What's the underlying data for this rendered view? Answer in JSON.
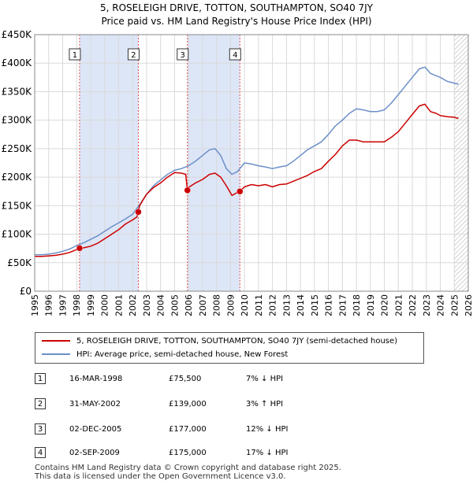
{
  "title": {
    "line1": "5, ROSELEIGH DRIVE, TOTTON, SOUTHAMPTON, SO40 7JY",
    "line2": "Price paid vs. HM Land Registry's House Price Index (HPI)"
  },
  "chart_data": {
    "type": "line",
    "title": "5, ROSELEIGH DRIVE, TOTTON, SOUTHAMPTON, SO40 7JY",
    "subtitle": "Price paid vs. HM Land Registry's House Price Index (HPI)",
    "xlabel": "",
    "ylabel": "",
    "xlim": [
      1995,
      2026
    ],
    "ylim": [
      0,
      450000
    ],
    "y_ticks": [
      0,
      50000,
      100000,
      150000,
      200000,
      250000,
      300000,
      350000,
      400000,
      450000
    ],
    "y_tick_labels": [
      "£0",
      "£50K",
      "£100K",
      "£150K",
      "£200K",
      "£250K",
      "£300K",
      "£350K",
      "£400K",
      "£450K"
    ],
    "x_ticks": [
      1995,
      1996,
      1997,
      1998,
      1999,
      2000,
      2001,
      2002,
      2003,
      2004,
      2005,
      2006,
      2007,
      2008,
      2009,
      2010,
      2011,
      2012,
      2013,
      2014,
      2015,
      2016,
      2017,
      2018,
      2019,
      2020,
      2021,
      2022,
      2023,
      2024,
      2025,
      2026
    ],
    "x_tick_labels": [
      "1995",
      "1996",
      "1997",
      "1998",
      "1999",
      "2000",
      "2001",
      "2002",
      "2003",
      "2004",
      "2005",
      "2006",
      "2007",
      "2008",
      "2009",
      "2010",
      "2011",
      "2012",
      "2013",
      "2014",
      "2015",
      "2016",
      "2017",
      "2018",
      "2019",
      "2020",
      "2021",
      "2022",
      "2023",
      "2024",
      "2025",
      "2026"
    ],
    "grid": true,
    "series": [
      {
        "name": "5, ROSELEIGH DRIVE, TOTTON, SOUTHAMPTON, SO40 7JY (semi-detached house)",
        "color": "#cc0000",
        "x": [
          1995.0,
          1995.5,
          1996.0,
          1996.5,
          1997.0,
          1997.5,
          1998.0,
          1998.21,
          1998.5,
          1999.0,
          1999.5,
          2000.0,
          2000.5,
          2001.0,
          2001.5,
          2002.0,
          2002.3,
          2002.41,
          2002.5,
          2003.0,
          2003.5,
          2004.0,
          2004.5,
          2005.0,
          2005.5,
          2005.8,
          2005.92,
          2006.0,
          2006.5,
          2007.0,
          2007.5,
          2007.9,
          2008.3,
          2008.7,
          2009.1,
          2009.4,
          2009.67,
          2010.0,
          2010.5,
          2011.0,
          2011.5,
          2012.0,
          2012.5,
          2013.0,
          2013.5,
          2014.0,
          2014.5,
          2015.0,
          2015.5,
          2016.0,
          2016.5,
          2017.0,
          2017.5,
          2018.0,
          2018.5,
          2019.0,
          2019.5,
          2020.0,
          2020.5,
          2021.0,
          2021.5,
          2022.0,
          2022.5,
          2022.9,
          2023.3,
          2023.7,
          2024.0,
          2024.5,
          2025.0,
          2025.3
        ],
        "values": [
          61000,
          61000,
          62000,
          63000,
          65000,
          68000,
          73000,
          75500,
          76000,
          79000,
          84000,
          92000,
          100000,
          108000,
          118000,
          125000,
          130000,
          139000,
          150000,
          170000,
          182000,
          190000,
          200000,
          208000,
          207000,
          205000,
          177000,
          182000,
          190000,
          196000,
          205000,
          207000,
          200000,
          185000,
          168000,
          172000,
          175000,
          183000,
          187000,
          185000,
          187000,
          183000,
          187000,
          188000,
          193000,
          198000,
          203000,
          210000,
          215000,
          228000,
          240000,
          255000,
          265000,
          265000,
          262000,
          262000,
          262000,
          262000,
          270000,
          280000,
          295000,
          310000,
          325000,
          328000,
          315000,
          312000,
          308000,
          306000,
          305000,
          303000
        ]
      },
      {
        "name": "HPI: Average price, semi-detached house, New Forest",
        "color": "#6b8fc8",
        "x": [
          1995.0,
          1995.5,
          1996.0,
          1996.5,
          1997.0,
          1997.5,
          1998.0,
          1998.5,
          1999.0,
          1999.5,
          2000.0,
          2000.5,
          2001.0,
          2001.5,
          2002.0,
          2002.5,
          2003.0,
          2003.5,
          2004.0,
          2004.5,
          2005.0,
          2005.5,
          2006.0,
          2006.5,
          2007.0,
          2007.5,
          2007.9,
          2008.3,
          2008.7,
          2009.1,
          2009.5,
          2010.0,
          2010.5,
          2011.0,
          2011.5,
          2012.0,
          2012.5,
          2013.0,
          2013.5,
          2014.0,
          2014.5,
          2015.0,
          2015.5,
          2016.0,
          2016.5,
          2017.0,
          2017.5,
          2018.0,
          2018.5,
          2019.0,
          2019.5,
          2020.0,
          2020.5,
          2021.0,
          2021.5,
          2022.0,
          2022.5,
          2022.9,
          2023.3,
          2023.7,
          2024.0,
          2024.5,
          2025.0,
          2025.3
        ],
        "values": [
          64000,
          64000,
          65000,
          67000,
          70000,
          74000,
          80000,
          85000,
          91000,
          97000,
          105000,
          113000,
          120000,
          127000,
          135000,
          152000,
          170000,
          185000,
          195000,
          205000,
          212000,
          215000,
          220000,
          228000,
          238000,
          248000,
          250000,
          238000,
          215000,
          205000,
          210000,
          225000,
          223000,
          220000,
          218000,
          215000,
          218000,
          220000,
          228000,
          238000,
          248000,
          255000,
          262000,
          275000,
          290000,
          300000,
          312000,
          320000,
          318000,
          315000,
          315000,
          318000,
          330000,
          345000,
          360000,
          375000,
          390000,
          393000,
          382000,
          378000,
          375000,
          368000,
          365000,
          363000
        ]
      }
    ],
    "markers": [
      {
        "id": "1",
        "x": 1998.21,
        "value": 75500
      },
      {
        "id": "2",
        "x": 2002.41,
        "value": 139000
      },
      {
        "id": "3",
        "x": 2005.92,
        "value": 177000
      },
      {
        "id": "4",
        "x": 2009.67,
        "value": 175000
      }
    ],
    "shaded_periods": [
      [
        1998.21,
        2002.41
      ],
      [
        2005.92,
        2009.67
      ]
    ],
    "hatched_from": 2025.0,
    "legend_position": "below"
  },
  "legend": {
    "price_paid": "5, ROSELEIGH DRIVE, TOTTON, SOUTHAMPTON, SO40 7JY (semi-detached house)",
    "hpi": "HPI: Average price, semi-detached house, New Forest"
  },
  "sales": [
    {
      "num": "1",
      "date": "16-MAR-1998",
      "price": "£75,500",
      "hpi": "7% ↓ HPI"
    },
    {
      "num": "2",
      "date": "31-MAY-2002",
      "price": "£139,000",
      "hpi": "3% ↑ HPI"
    },
    {
      "num": "3",
      "date": "02-DEC-2005",
      "price": "£177,000",
      "hpi": "12% ↓ HPI"
    },
    {
      "num": "4",
      "date": "02-SEP-2009",
      "price": "£175,000",
      "hpi": "17% ↓ HPI"
    }
  ],
  "footer": {
    "line1": "Contains HM Land Registry data © Crown copyright and database right 2025.",
    "line2": "This data is licensed under the Open Government Licence v3.0."
  },
  "colors": {
    "price_paid": "#cc0000",
    "hpi": "#6b8fc8",
    "shade": "#dde6f7",
    "grid": "#d9d9d9",
    "marker_line": "#e05050"
  }
}
